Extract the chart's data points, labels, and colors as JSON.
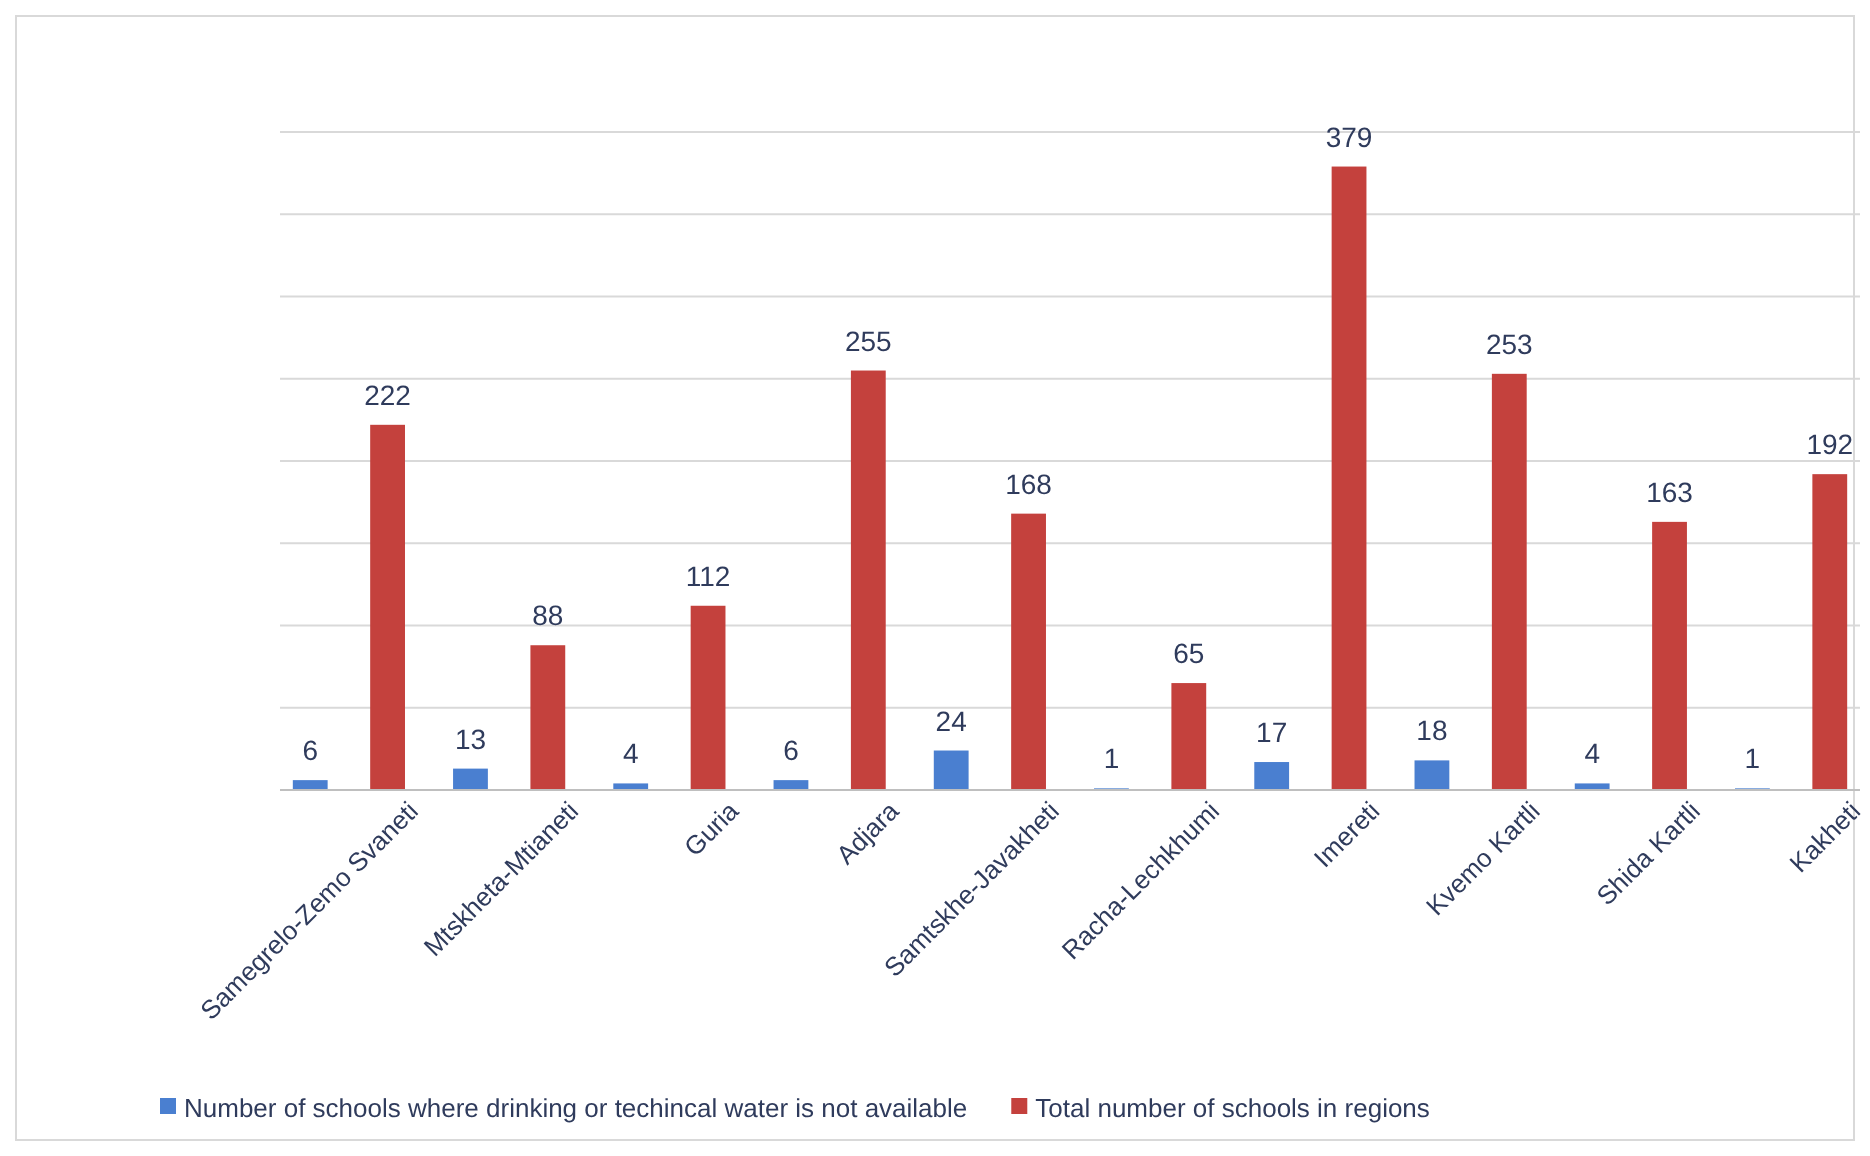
{
  "chart_data": {
    "type": "bar",
    "categories": [
      "Samegrelo-Zemo Svaneti",
      "Mtskheta-Mtianeti",
      "Guria",
      "Adjara",
      "Samtskhe-Javakheti",
      "Racha-Lechkhumi",
      "Imereti",
      "Kvemo Kartli",
      "Shida Kartli",
      "Kakheti"
    ],
    "series": [
      {
        "name": "Number of schools where drinking or techincal  water is not available",
        "color": "#4a7fd0",
        "values": [
          6,
          13,
          4,
          6,
          24,
          1,
          17,
          18,
          4,
          1
        ]
      },
      {
        "name": "Total number of schools in regions",
        "color": "#c4413d",
        "values": [
          222,
          88,
          112,
          255,
          168,
          65,
          379,
          253,
          163,
          192
        ]
      }
    ],
    "ylim": [
      0,
      400
    ],
    "yticks": [
      {
        "value": 0,
        "label": null
      },
      {
        "value": 50,
        "label": null
      },
      {
        "value": 100,
        "label": null
      },
      {
        "value": 150,
        "label": null
      },
      {
        "value": 200,
        "label": null
      },
      {
        "value": 250,
        "label": null
      },
      {
        "value": 300,
        "label": null
      },
      {
        "value": 350,
        "label": null
      },
      {
        "value": 400,
        "label": null
      }
    ],
    "tick_labels": "x",
    "grid": "y",
    "data_labels": true,
    "legend": "bottom"
  }
}
